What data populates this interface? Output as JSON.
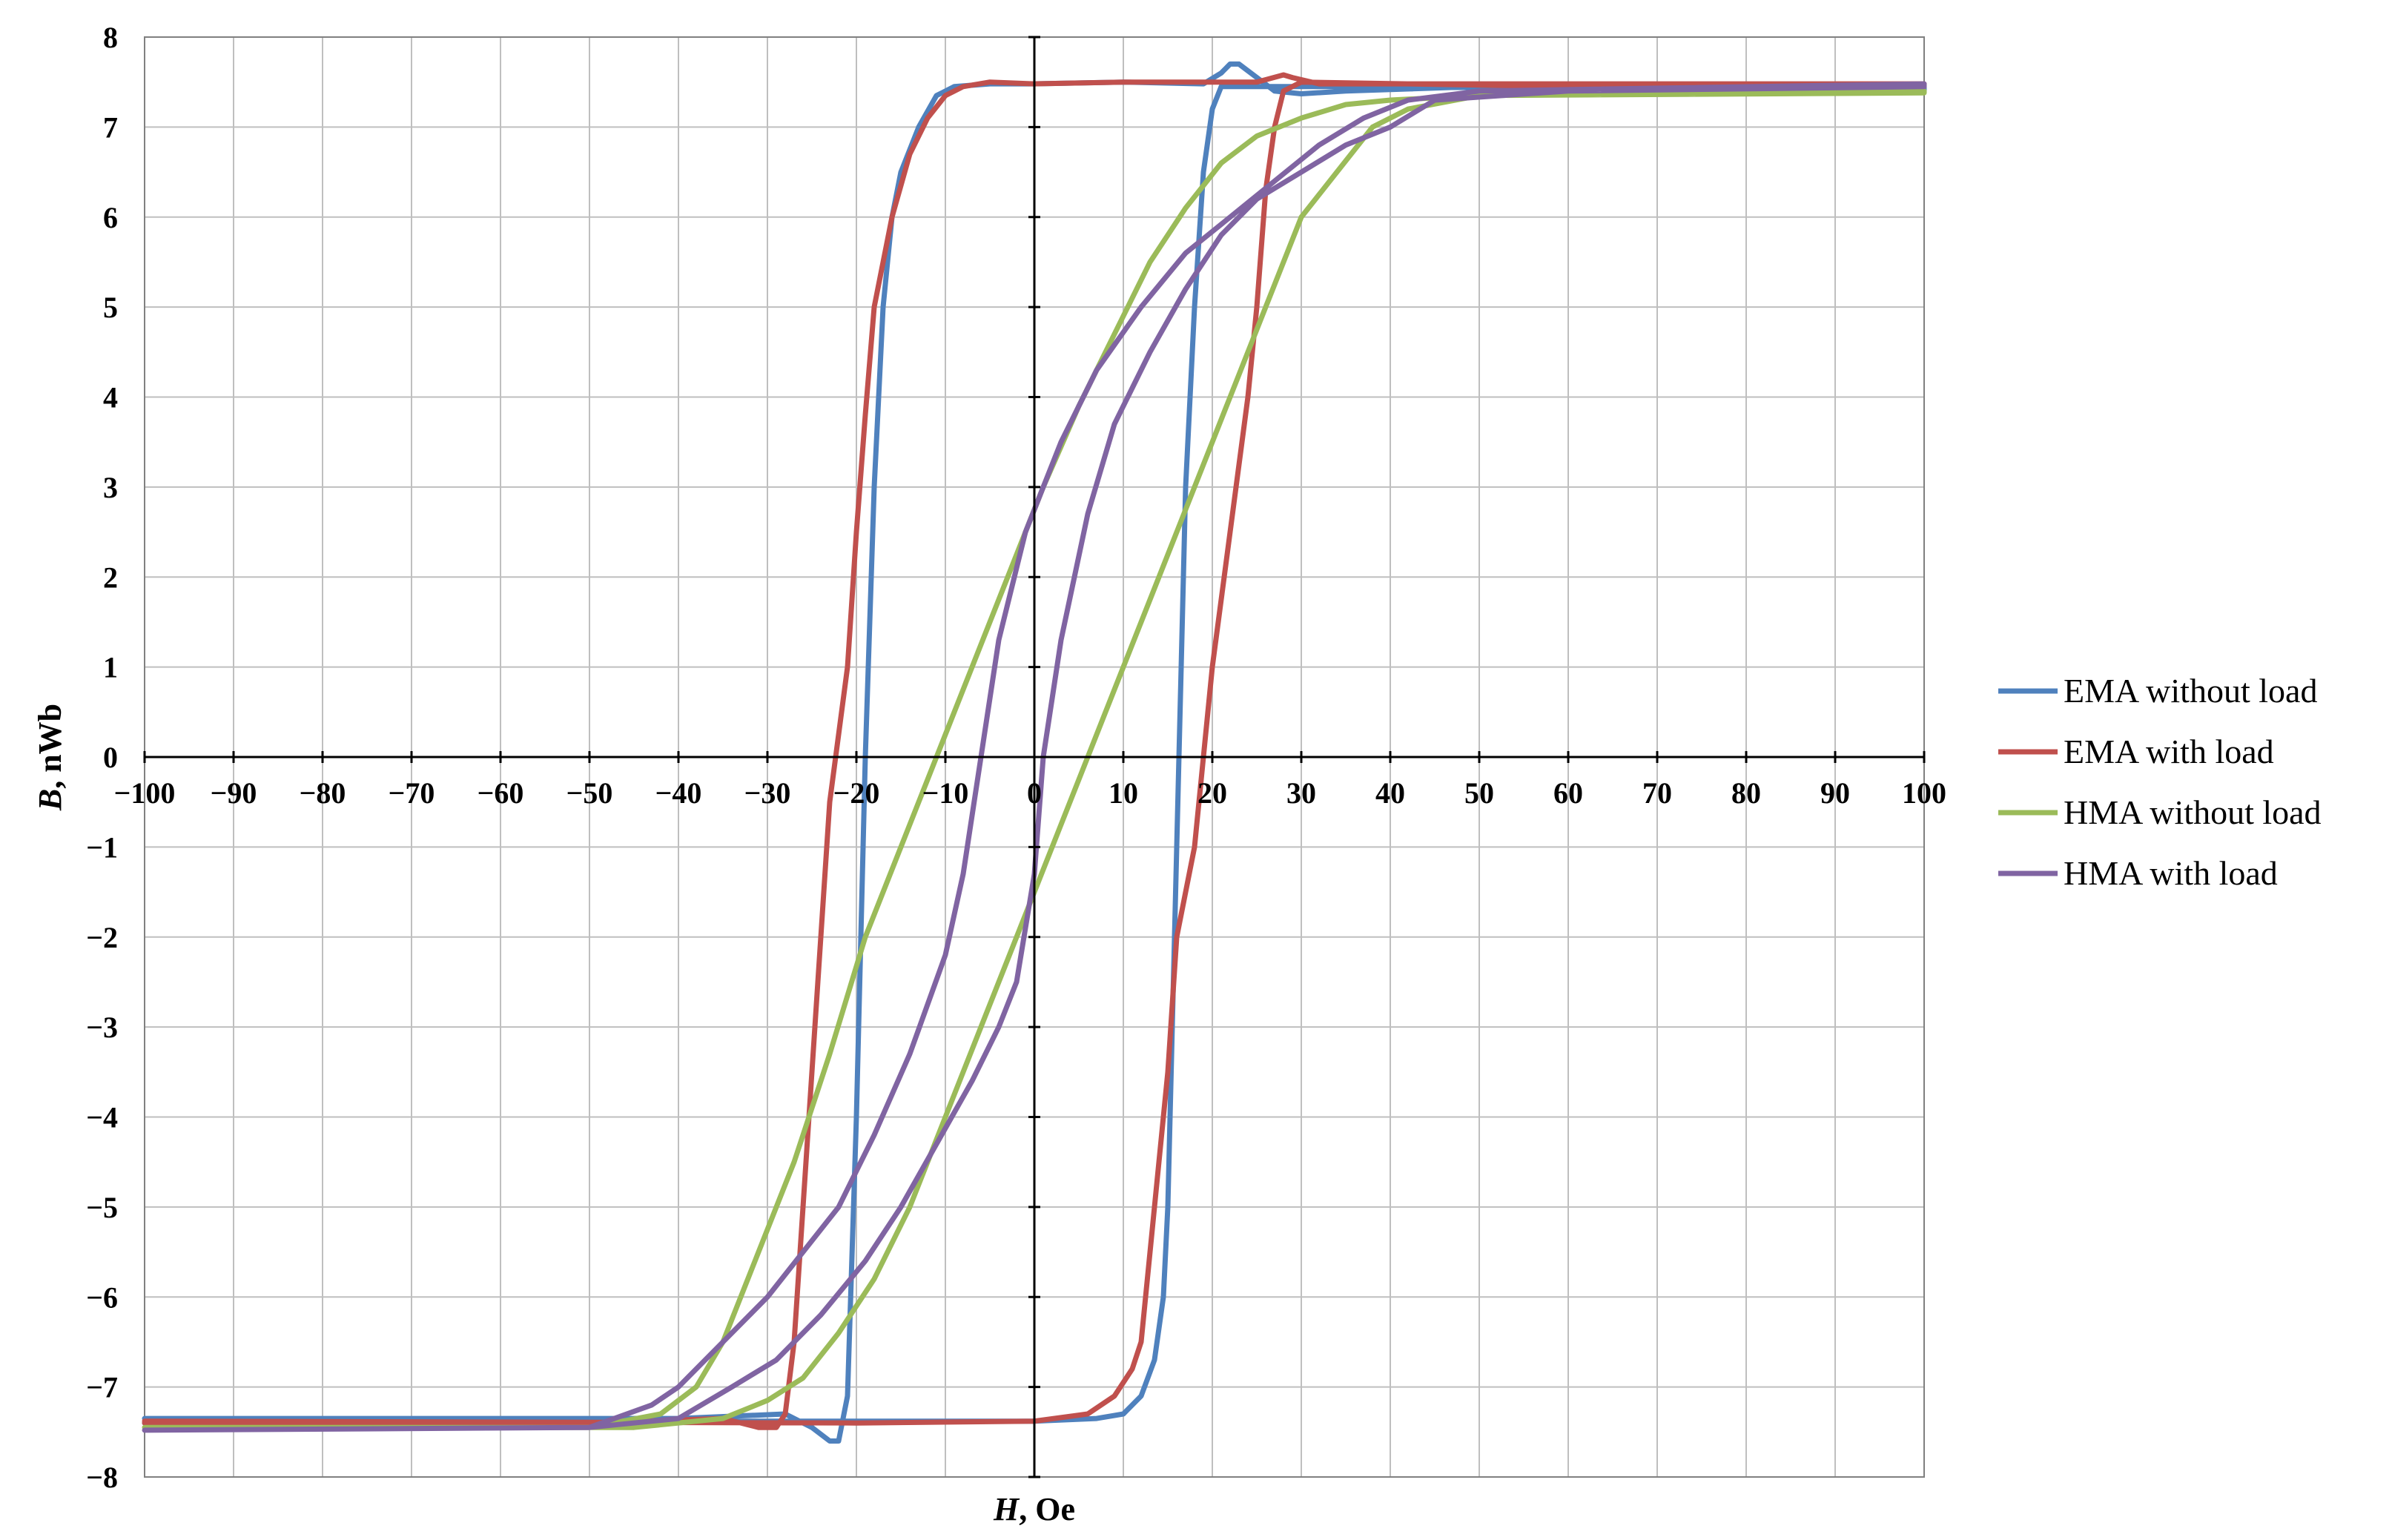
{
  "chart_data": {
    "type": "line",
    "xlabel_var": "H",
    "xlabel_unit": ", Oe",
    "ylabel_var": "B",
    "ylabel_unit": ", nWb",
    "xlim": [
      -100,
      100
    ],
    "ylim": [
      -8,
      8
    ],
    "x_ticks": [
      -100,
      -90,
      -80,
      -70,
      -60,
      -50,
      -40,
      -30,
      -20,
      -10,
      0,
      10,
      20,
      30,
      40,
      50,
      60,
      70,
      80,
      90,
      100
    ],
    "y_ticks": [
      -8,
      -7,
      -6,
      -5,
      -4,
      -3,
      -2,
      -1,
      0,
      1,
      2,
      3,
      4,
      5,
      6,
      7,
      8
    ],
    "x_tick_labels": [
      "−100",
      "−90",
      "−80",
      "−70",
      "−60",
      "−50",
      "−40",
      "−30",
      "−20",
      "−10",
      "0",
      "10",
      "20",
      "30",
      "40",
      "50",
      "60",
      "70",
      "80",
      "90",
      "100"
    ],
    "y_tick_labels": [
      "−8",
      "−7",
      "−6",
      "−5",
      "−4",
      "−3",
      "−2",
      "−1",
      "0",
      "1",
      "2",
      "3",
      "4",
      "5",
      "6",
      "7",
      "8"
    ],
    "grid": true,
    "legend_position": "right",
    "series": [
      {
        "name": "EMA without load",
        "color": "#4F81BD",
        "points": [
          [
            -100,
            -7.35
          ],
          [
            -60,
            -7.35
          ],
          [
            -40,
            -7.35
          ],
          [
            -28,
            -7.3
          ],
          [
            -25,
            -7.45
          ],
          [
            -23,
            -7.6
          ],
          [
            -22,
            -7.6
          ],
          [
            -21,
            -7.1
          ],
          [
            -20,
            -4
          ],
          [
            -19,
            0
          ],
          [
            -18,
            3
          ],
          [
            -17,
            5
          ],
          [
            -16,
            6
          ],
          [
            -15,
            6.5
          ],
          [
            -13,
            7
          ],
          [
            -11,
            7.35
          ],
          [
            -9,
            7.45
          ],
          [
            -5,
            7.48
          ],
          [
            0,
            7.48
          ],
          [
            10,
            7.5
          ],
          [
            19,
            7.48
          ],
          [
            21,
            7.6
          ],
          [
            22,
            7.7
          ],
          [
            23,
            7.7
          ],
          [
            25,
            7.55
          ],
          [
            27,
            7.4
          ],
          [
            30,
            7.37
          ],
          [
            35,
            7.4
          ],
          [
            50,
            7.45
          ],
          [
            80,
            7.47
          ],
          [
            100,
            7.45
          ],
          [
            100,
            7.4
          ],
          [
            80,
            7.42
          ],
          [
            40,
            7.45
          ],
          [
            21,
            7.45
          ],
          [
            20,
            7.2
          ],
          [
            19,
            6.5
          ],
          [
            18,
            5
          ],
          [
            17,
            3
          ],
          [
            16.5,
            1
          ],
          [
            16,
            -1
          ],
          [
            15.5,
            -3
          ],
          [
            15,
            -5
          ],
          [
            14.5,
            -6
          ],
          [
            13.5,
            -6.7
          ],
          [
            12,
            -7.1
          ],
          [
            10,
            -7.3
          ],
          [
            7,
            -7.35
          ],
          [
            0,
            -7.38
          ],
          [
            -40,
            -7.38
          ],
          [
            -100,
            -7.4
          ]
        ]
      },
      {
        "name": "EMA with load",
        "color": "#C0504D",
        "points": [
          [
            -100,
            -7.4
          ],
          [
            -50,
            -7.4
          ],
          [
            -35,
            -7.35
          ],
          [
            -31,
            -7.45
          ],
          [
            -29,
            -7.45
          ],
          [
            -28,
            -7.3
          ],
          [
            -27,
            -6.5
          ],
          [
            -26,
            -5
          ],
          [
            -25,
            -3.5
          ],
          [
            -24,
            -2
          ],
          [
            -23,
            -0.5
          ],
          [
            -21,
            1
          ],
          [
            -20,
            2.5
          ],
          [
            -19,
            3.8
          ],
          [
            -18,
            5
          ],
          [
            -16,
            6
          ],
          [
            -14,
            6.7
          ],
          [
            -12,
            7.1
          ],
          [
            -10,
            7.35
          ],
          [
            -8,
            7.45
          ],
          [
            -5,
            7.5
          ],
          [
            0,
            7.48
          ],
          [
            10,
            7.5
          ],
          [
            25,
            7.5
          ],
          [
            28,
            7.58
          ],
          [
            29,
            7.55
          ],
          [
            32,
            7.48
          ],
          [
            50,
            7.48
          ],
          [
            100,
            7.48
          ],
          [
            100,
            7.45
          ],
          [
            60,
            7.45
          ],
          [
            30,
            7.5
          ],
          [
            28,
            7.4
          ],
          [
            27,
            7
          ],
          [
            26,
            6.3
          ],
          [
            25,
            5
          ],
          [
            24,
            4
          ],
          [
            22,
            2.5
          ],
          [
            20,
            1
          ],
          [
            19,
            0
          ],
          [
            18,
            -1
          ],
          [
            16,
            -2
          ],
          [
            15,
            -3.5
          ],
          [
            14,
            -4.5
          ],
          [
            13,
            -5.5
          ],
          [
            12,
            -6.5
          ],
          [
            11,
            -6.8
          ],
          [
            9,
            -7.1
          ],
          [
            6,
            -7.3
          ],
          [
            0,
            -7.38
          ],
          [
            -20,
            -7.4
          ],
          [
            -100,
            -7.38
          ]
        ]
      },
      {
        "name": "HMA without load",
        "color": "#9BBB59",
        "points": [
          [
            -100,
            -7.45
          ],
          [
            -50,
            -7.45
          ],
          [
            -42,
            -7.3
          ],
          [
            -38,
            -7
          ],
          [
            -35,
            -6.5
          ],
          [
            -31,
            -5.5
          ],
          [
            -27,
            -4.5
          ],
          [
            -23,
            -3.3
          ],
          [
            -19,
            -2
          ],
          [
            -15,
            -1
          ],
          [
            -11,
            0
          ],
          [
            -7,
            1
          ],
          [
            -3,
            2
          ],
          [
            1,
            3
          ],
          [
            5,
            3.9
          ],
          [
            9,
            4.7
          ],
          [
            13,
            5.5
          ],
          [
            17,
            6.1
          ],
          [
            21,
            6.6
          ],
          [
            25,
            6.9
          ],
          [
            30,
            7.1
          ],
          [
            35,
            7.25
          ],
          [
            40,
            7.3
          ],
          [
            50,
            7.35
          ],
          [
            100,
            7.4
          ],
          [
            100,
            7.38
          ],
          [
            50,
            7.35
          ],
          [
            42,
            7.2
          ],
          [
            38,
            7
          ],
          [
            34,
            6.5
          ],
          [
            30,
            6
          ],
          [
            26,
            5
          ],
          [
            22,
            4
          ],
          [
            18,
            3
          ],
          [
            14,
            2
          ],
          [
            10,
            1
          ],
          [
            6,
            0
          ],
          [
            2,
            -1
          ],
          [
            -2,
            -2
          ],
          [
            -6,
            -3
          ],
          [
            -10,
            -4
          ],
          [
            -14,
            -5
          ],
          [
            -18,
            -5.8
          ],
          [
            -22,
            -6.4
          ],
          [
            -26,
            -6.9
          ],
          [
            -30,
            -7.15
          ],
          [
            -35,
            -7.35
          ],
          [
            -45,
            -7.45
          ],
          [
            -100,
            -7.45
          ]
        ]
      },
      {
        "name": "HMA with load",
        "color": "#8064A2",
        "points": [
          [
            -100,
            -7.48
          ],
          [
            -50,
            -7.45
          ],
          [
            -43,
            -7.2
          ],
          [
            -40,
            -7
          ],
          [
            -35,
            -6.5
          ],
          [
            -30,
            -6
          ],
          [
            -26,
            -5.5
          ],
          [
            -22,
            -5
          ],
          [
            -18,
            -4.2
          ],
          [
            -14,
            -3.3
          ],
          [
            -10,
            -2.2
          ],
          [
            -8,
            -1.3
          ],
          [
            -6,
            0
          ],
          [
            -4,
            1.3
          ],
          [
            -1,
            2.5
          ],
          [
            3,
            3.5
          ],
          [
            7,
            4.3
          ],
          [
            12,
            5
          ],
          [
            17,
            5.6
          ],
          [
            22,
            6
          ],
          [
            27,
            6.4
          ],
          [
            32,
            6.8
          ],
          [
            37,
            7.1
          ],
          [
            42,
            7.3
          ],
          [
            50,
            7.4
          ],
          [
            100,
            7.48
          ],
          [
            100,
            7.45
          ],
          [
            60,
            7.4
          ],
          [
            45,
            7.3
          ],
          [
            40,
            7
          ],
          [
            35,
            6.8
          ],
          [
            30,
            6.5
          ],
          [
            25,
            6.2
          ],
          [
            21,
            5.8
          ],
          [
            17,
            5.2
          ],
          [
            13,
            4.5
          ],
          [
            9,
            3.7
          ],
          [
            6,
            2.7
          ],
          [
            3,
            1.3
          ],
          [
            1,
            0
          ],
          [
            0,
            -1.3
          ],
          [
            -2,
            -2.5
          ],
          [
            -4,
            -3
          ],
          [
            -7,
            -3.6
          ],
          [
            -11,
            -4.3
          ],
          [
            -15,
            -5
          ],
          [
            -19,
            -5.6
          ],
          [
            -24,
            -6.2
          ],
          [
            -29,
            -6.7
          ],
          [
            -34,
            -7
          ],
          [
            -40,
            -7.35
          ],
          [
            -50,
            -7.45
          ],
          [
            -100,
            -7.48
          ]
        ]
      }
    ]
  }
}
